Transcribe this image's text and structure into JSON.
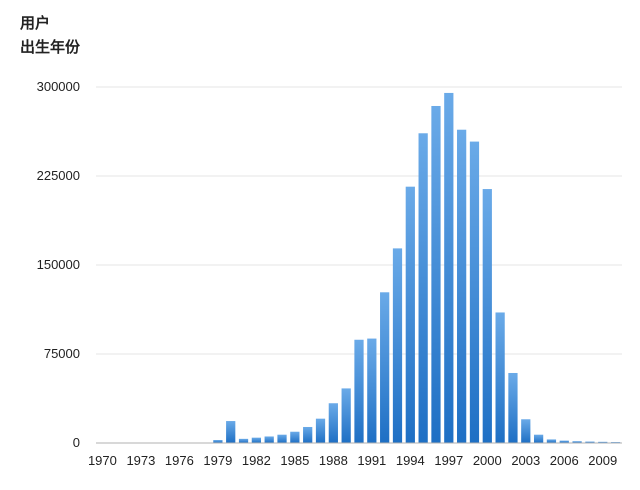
{
  "chart_data": {
    "type": "bar",
    "title_lines": [
      "用户",
      "出生年份"
    ],
    "categories": [
      "1970",
      "1971",
      "1972",
      "1973",
      "1974",
      "1975",
      "1976",
      "1977",
      "1978",
      "1979",
      "1980",
      "1981",
      "1982",
      "1983",
      "1984",
      "1985",
      "1986",
      "1987",
      "1988",
      "1989",
      "1990",
      "1991",
      "1992",
      "1993",
      "1994",
      "1995",
      "1996",
      "1997",
      "1998",
      "1999",
      "2000",
      "2001",
      "2002",
      "2003",
      "2004",
      "2005",
      "2006",
      "2007",
      "2008",
      "2009",
      "2010"
    ],
    "values": [
      200,
      200,
      200,
      200,
      200,
      200,
      200,
      300,
      400,
      2500,
      18500,
      3500,
      4500,
      5500,
      7000,
      9500,
      13500,
      20500,
      33500,
      46000,
      87000,
      88000,
      127000,
      164000,
      216000,
      261000,
      284000,
      295000,
      264000,
      254000,
      214000,
      110000,
      59000,
      20000,
      7000,
      3000,
      2000,
      1500,
      1200,
      1000,
      800
    ],
    "x_tick_labels": [
      "1970",
      "1973",
      "1976",
      "1979",
      "1982",
      "1985",
      "1988",
      "1991",
      "1994",
      "1997",
      "2000",
      "2003",
      "2006",
      "2009"
    ],
    "y_ticks": [
      0,
      75000,
      150000,
      225000,
      300000
    ],
    "ylim": [
      0,
      300000
    ],
    "grid": true,
    "bar_color_top": "#6aaae8",
    "bar_color_bottom": "#1e6fc4",
    "xlabel": "",
    "ylabel": ""
  }
}
